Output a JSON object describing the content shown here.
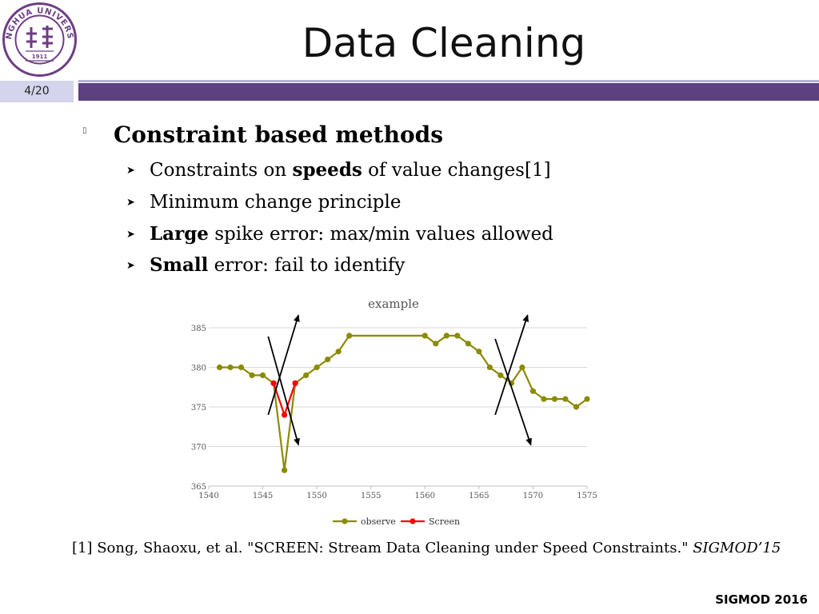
{
  "header": {
    "title": "Data Cleaning",
    "slide_number": "4/20",
    "logo_text_top": "TSINGHUA UNIVERSITY",
    "logo_year": "1911",
    "accent_color": "#5c4080"
  },
  "content": {
    "heading": "Constraint based methods",
    "bullets": [
      {
        "pre": "Constraints on ",
        "bold": "speeds",
        "post": " of value changes[1]"
      },
      {
        "pre": "Minimum change principle",
        "bold": "",
        "post": ""
      },
      {
        "pre": "",
        "bold": "Large",
        "post": " spike error: max/min values allowed"
      },
      {
        "pre": "",
        "bold": "Small",
        "post": " error: fail to identify"
      }
    ]
  },
  "reference": {
    "text": "[1] Song, Shaoxu, et al. \"SCREEN: Stream Data Cleaning under Speed Constraints.\" ",
    "venue": "SIGMOD’15"
  },
  "footer": {
    "conference": "SIGMOD 2016"
  },
  "chart_data": {
    "type": "line",
    "title": "example",
    "xlabel": "",
    "ylabel": "",
    "xlim": [
      1540,
      1575
    ],
    "ylim": [
      365,
      385
    ],
    "xticks": [
      1540,
      1545,
      1550,
      1555,
      1560,
      1565,
      1570,
      1575
    ],
    "yticks": [
      365,
      370,
      375,
      380,
      385
    ],
    "grid": "horizontal",
    "legend_position": "bottom",
    "series": [
      {
        "name": "observe",
        "color": "#8b8b00",
        "x": [
          1541,
          1542,
          1543,
          1544,
          1545,
          1546,
          1547,
          1548,
          1549,
          1550,
          1551,
          1552,
          1553,
          1560,
          1561,
          1562,
          1563,
          1564,
          1565,
          1566,
          1567,
          1568,
          1569,
          1570,
          1571,
          1572,
          1573,
          1574,
          1575
        ],
        "y": [
          380,
          380,
          380,
          379,
          379,
          378,
          367,
          378,
          379,
          380,
          381,
          382,
          384,
          384,
          383,
          384,
          384,
          383,
          382,
          380,
          379,
          378,
          380,
          377,
          376,
          376,
          376,
          375,
          376
        ]
      },
      {
        "name": "Screen",
        "color": "#ff0000",
        "x": [
          1546,
          1547,
          1548
        ],
        "y": [
          378,
          374,
          378
        ]
      }
    ],
    "annotations": [
      {
        "type": "arrow",
        "from": [
          1545.5,
          374
        ],
        "to": [
          1548.3,
          386.6
        ]
      },
      {
        "type": "arrow",
        "from": [
          1545.5,
          383.9
        ],
        "to": [
          1548.3,
          370.2
        ]
      },
      {
        "type": "arrow",
        "from": [
          1566.5,
          374
        ],
        "to": [
          1569.5,
          386.6
        ]
      },
      {
        "type": "arrow",
        "from": [
          1566.5,
          383.6
        ],
        "to": [
          1569.8,
          370.2
        ]
      }
    ]
  }
}
